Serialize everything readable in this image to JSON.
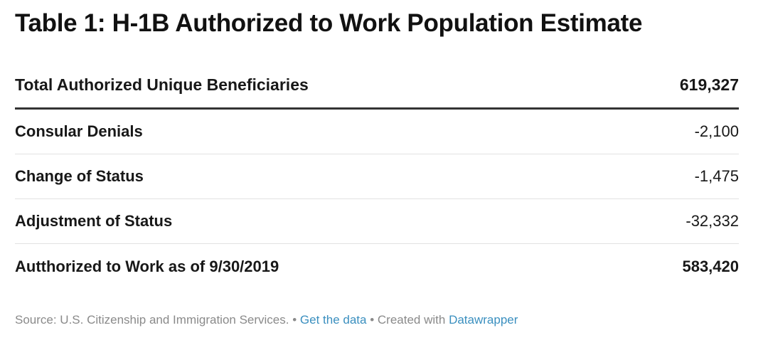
{
  "title": "Table 1: H-1B Authorized to Work Population Estimate",
  "chart_data": {
    "type": "table",
    "title": "Table 1: H-1B Authorized to Work Population Estimate",
    "rows": [
      {
        "label": "Total Authorized Unique Beneficiaries",
        "value": "619,327"
      },
      {
        "label": "Consular Denials",
        "value": "-2,100"
      },
      {
        "label": "Change of Status",
        "value": "-1,475"
      },
      {
        "label": "Adjustment of Status",
        "value": "-32,332"
      },
      {
        "label": "Autthorized to Work as of 9/30/2019",
        "value": "583,420"
      }
    ],
    "numeric_values": [
      619327,
      -2100,
      -1475,
      -32332,
      583420
    ]
  },
  "footer": {
    "source": "Source: U.S. Citizenship and Immigration Services.",
    "separator": " • ",
    "get_data": "Get the data",
    "created_with": "Created with ",
    "datawrapper": "Datawrapper"
  },
  "colors": {
    "text": "#181818",
    "muted": "#8a8a8a",
    "link": "#3a8fbf",
    "rule": "#333333",
    "divider": "#e2e2e2"
  }
}
